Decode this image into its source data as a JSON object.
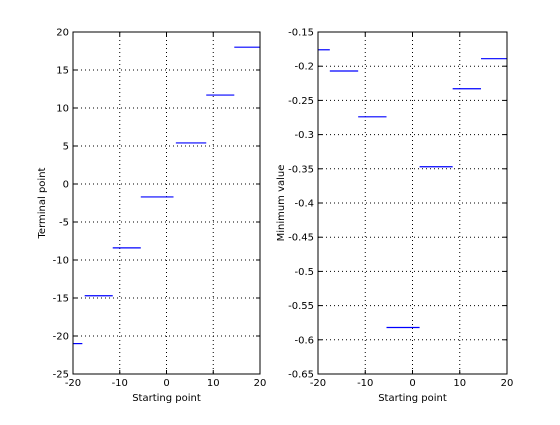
{
  "chart_data": [
    {
      "type": "line",
      "title": "",
      "xlabel": "Starting point",
      "ylabel": "Terminal point",
      "xlim": [
        -20,
        20
      ],
      "ylim": [
        -25,
        20
      ],
      "xticks": [
        -20,
        -10,
        0,
        10,
        20
      ],
      "xtick_labels": [
        "-20",
        "-10",
        "0",
        "10",
        "20"
      ],
      "yticks": [
        -25,
        -20,
        -15,
        -10,
        -5,
        0,
        5,
        10,
        15,
        20
      ],
      "ytick_labels": [
        "-25",
        "-20",
        "-15",
        "-10",
        "-5",
        "0",
        "5",
        "10",
        "15",
        "20"
      ],
      "grid": true,
      "line_color": "#0000ff",
      "segments": [
        {
          "x": [
            -20,
            -18
          ],
          "y": -21.0
        },
        {
          "x": [
            -17.5,
            -11.5
          ],
          "y": -14.7
        },
        {
          "x": [
            -11.5,
            -5.5
          ],
          "y": -8.4
        },
        {
          "x": [
            -5.5,
            1.5
          ],
          "y": -1.7
        },
        {
          "x": [
            2,
            8.5
          ],
          "y": 5.4
        },
        {
          "x": [
            8.5,
            14.5
          ],
          "y": 11.7
        },
        {
          "x": [
            14.5,
            20
          ],
          "y": 18.0
        }
      ]
    },
    {
      "type": "line",
      "title": "",
      "xlabel": "Starting point",
      "ylabel": "Minimum value",
      "xlim": [
        -20,
        20
      ],
      "ylim": [
        -0.65,
        -0.15
      ],
      "xticks": [
        -20,
        -10,
        0,
        10,
        20
      ],
      "xtick_labels": [
        "-20",
        "-10",
        "0",
        "10",
        "20"
      ],
      "yticks": [
        -0.65,
        -0.6,
        -0.55,
        -0.5,
        -0.45,
        -0.4,
        -0.35,
        -0.3,
        -0.25,
        -0.2,
        -0.15
      ],
      "ytick_labels": [
        "-0.65",
        "-0.6",
        "-0.55",
        "-0.5",
        "-0.45",
        "-0.4",
        "-0.35",
        "-0.3",
        "-0.25",
        "-0.2",
        "-0.15"
      ],
      "grid": true,
      "line_color": "#0000ff",
      "segments": [
        {
          "x": [
            -20,
            -17.5
          ],
          "y": -0.176
        },
        {
          "x": [
            -17.5,
            -11.5
          ],
          "y": -0.207
        },
        {
          "x": [
            -11.5,
            -5.5
          ],
          "y": -0.274
        },
        {
          "x": [
            -5.5,
            1.5
          ],
          "y": -0.582
        },
        {
          "x": [
            1.5,
            8.5
          ],
          "y": -0.347
        },
        {
          "x": [
            8.5,
            14.5
          ],
          "y": -0.233
        },
        {
          "x": [
            14.5,
            20
          ],
          "y": -0.189
        }
      ]
    }
  ]
}
